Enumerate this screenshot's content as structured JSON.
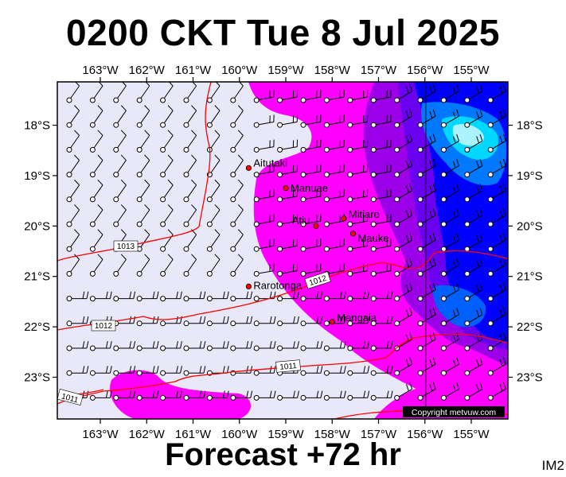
{
  "header": {
    "title": "0200 CKT Tue 8 Jul 2025"
  },
  "footer": {
    "forecast": "Forecast +72 hr"
  },
  "corner_label": "IM2",
  "copyright": "Copyright metvuw.com",
  "axes": {
    "lon_labels": [
      "163°W",
      "162°W",
      "161°W",
      "160°W",
      "159°W",
      "158°W",
      "157°W",
      "156°W",
      "155°W"
    ],
    "lat_labels": [
      "18°S",
      "19°S",
      "20°S",
      "21°S",
      "22°S",
      "23°S"
    ]
  },
  "places": [
    {
      "name": "Aitutaki",
      "lon": -159.8,
      "lat": -18.85
    },
    {
      "name": "Manuae",
      "lon": -159.0,
      "lat": -19.25
    },
    {
      "name": "Mitiaro",
      "lon": -157.75,
      "lat": -19.85
    },
    {
      "name": "Atiu",
      "lon": -158.35,
      "lat": -20.0
    },
    {
      "name": "Mauke",
      "lon": -157.55,
      "lat": -20.15
    },
    {
      "name": "Rarotonga",
      "lon": -159.8,
      "lat": -21.2
    },
    {
      "name": "Mangaia",
      "lon": -158.0,
      "lat": -21.9
    }
  ],
  "isobar_labels": [
    "1013",
    "1012",
    "1012",
    "1011",
    "1011"
  ],
  "colors": {
    "background": "#e8e8f8",
    "magenta": "#ff00ff",
    "purple": "#9b00e8",
    "violet": "#6a00f0",
    "blue": "#0000ff",
    "mid_blue": "#0078ff",
    "cyan": "#00d8ff",
    "isobar": "#ff0000"
  }
}
